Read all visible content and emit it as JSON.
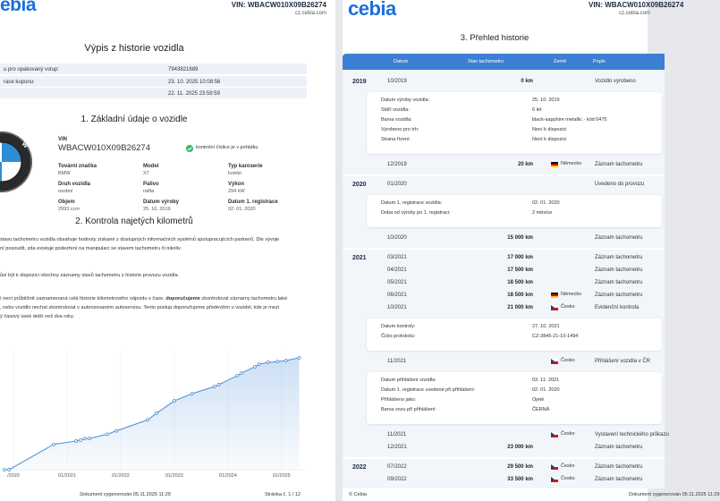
{
  "left_page": {
    "header": {
      "logo": "ebia",
      "vin": "VIN: WBACW010X09B26274",
      "web": "cz.cebia.com"
    },
    "title": "Výpis z historie vozidla",
    "coupon_rows": [
      {
        "label": "u pro opakovaný vstup:",
        "value": "7943821889"
      },
      {
        "label": "race kuponu:",
        "value": "23. 10. 2025 10:08:56"
      },
      {
        "value": "22. 11. 2025 23:59:59"
      }
    ],
    "section1": {
      "heading": "1. Základní údaje o vozidle",
      "vin_label": "VIN",
      "vin": "WBACW010X09B26274",
      "vin_check": "kontrolní číslice je v pořádku",
      "fields": [
        {
          "label": "Tovární značka",
          "value": "BMW"
        },
        {
          "label": "Model",
          "value": "X7"
        },
        {
          "label": "Typ karoserie",
          "value": "kombi"
        },
        {
          "label": "Druh vozidla",
          "value": "osobní"
        },
        {
          "label": "Palivo",
          "value": "nafta"
        },
        {
          "label": "Výkon",
          "value": "294 kW"
        },
        {
          "label": "Objem",
          "value": "2993 ccm"
        },
        {
          "label": "Datum výroby",
          "value": "25. 10. 2019"
        },
        {
          "label": "Datum 1. registrace",
          "value": "02. 01. 2020"
        }
      ]
    },
    "section2": {
      "heading": "2. Kontrola najetých kilometrů",
      "paragraphs": [
        [
          {
            "text": "stavu tachometru vozidla obsahuje hodnoty získané z dostupných informačních systémů spolupracujících partnerů. Dle vývoje"
          }
        ],
        [
          {
            "text": "ní posoudit, zda existuje podezření na manipulaci se stavem tachometru či nikoliv."
          }
        ],
        [
          {
            "text": "ůsí být k dispozici všechny záznamy stavů tachometru z historie provozu vozidla."
          }
        ],
        [
          {
            "text": "í není průběžně zaznamenaná celá historie kilometrového nájezdu v čase, "
          },
          {
            "text": "doporučujeme",
            "bold": true
          },
          {
            "text": " zkontrolovat záznamy tachometru také"
          }
        ],
        [
          {
            "text": ", nebo vozidlo nechat zkontrolovat v autorizovaném autoservisu. Tento postup doporučujeme především u vozidel, kde je mezi"
          }
        ],
        [
          {
            "text": "ý časový úsek delší než dva roky."
          }
        ]
      ],
      "chart": {
        "type": "line",
        "color": "#4a8fd8",
        "x": [
          2019.83,
          2019.92,
          2020.75,
          2021.17,
          2021.25,
          2021.33,
          2021.42,
          2021.75,
          2021.92,
          2022.5,
          2022.67,
          2023.0,
          2023.33,
          2023.75,
          2023.83,
          2024.17,
          2024.25,
          2024.5,
          2024.58,
          2024.75,
          2024.92,
          2025.08,
          2025.33
        ],
        "values": [
          0,
          20,
          15000,
          17000,
          17500,
          18500,
          18500,
          21000,
          23000,
          29500,
          33500,
          40800,
          45000,
          49300,
          50400,
          55700,
          57200,
          61000,
          62500,
          63600,
          64100,
          64700,
          66300
        ],
        "xlim": [
          2019.75,
          2025.42
        ],
        "ylim": [
          0,
          70000
        ],
        "xticks": [
          {
            "value": 2020,
            "label": "/2020"
          },
          {
            "value": 2021,
            "label": "01/2021"
          },
          {
            "value": 2022,
            "label": "01/2022"
          },
          {
            "value": 2023,
            "label": "01/2023"
          },
          {
            "value": 2024,
            "label": "01/2024"
          },
          {
            "value": 2025,
            "label": "01/2025"
          }
        ],
        "grid": true
      }
    },
    "footer": {
      "generated": "Dokument vygenerován 05.11.2025 11:29",
      "page": "Stránka č. 1 / 12"
    }
  },
  "right_page": {
    "header": {
      "logo": "cebia",
      "vin": "VIN: WBACW010X09B26274",
      "web": "cz.cebia.com"
    },
    "title": "3. Přehled historie",
    "columns": [
      "Datum",
      "Stav tachometru",
      "Země",
      "Popis"
    ],
    "groups": [
      {
        "year": "2019",
        "entries": [
          {
            "date": "10/2019",
            "km": "0 km",
            "desc": "Vozidlo vyrobeno"
          },
          {
            "details": [
              [
                "Datum výroby vozidla:",
                "25. 10. 2019"
              ],
              [
                "Stáří vozidla:",
                "6 let"
              ],
              [
                "Barva vozidla:",
                "black-sapphire metallic - kód 0475"
              ],
              [
                "Vyrobeno pro trh:",
                "Není k dispozici"
              ],
              [
                "Strana řízení:",
                "Není k dispozici"
              ]
            ]
          },
          {
            "date": "12/2019",
            "km": "20 km",
            "country": "Německo",
            "flag": "de",
            "desc": "Záznam tachometru"
          }
        ]
      },
      {
        "year": "2020",
        "entries": [
          {
            "date": "01/2020",
            "desc": "Uvedeno do provozu"
          },
          {
            "details": [
              [
                "Datum 1. registrace vozidla:",
                "02. 01. 2020"
              ],
              [
                "Doba od výroby po 1. registraci:",
                "2 měsíce"
              ]
            ]
          },
          {
            "date": "10/2020",
            "km": "15 000 km",
            "desc": "Záznam tachometru"
          }
        ]
      },
      {
        "year": "2021",
        "entries": [
          {
            "date": "03/2021",
            "km": "17 000 km",
            "desc": "Záznam tachometru"
          },
          {
            "date": "04/2021",
            "km": "17 500 km",
            "desc": "Záznam tachometru"
          },
          {
            "date": "05/2021",
            "km": "18 500 km",
            "desc": "Záznam tachometru"
          },
          {
            "date": "06/2021",
            "km": "18 500 km",
            "country": "Německo",
            "flag": "de",
            "desc": "Záznam tachometru"
          },
          {
            "date": "10/2021",
            "km": "21 000 km",
            "country": "Česko",
            "flag": "cz",
            "desc": "Evidenční kontrola"
          },
          {
            "details": [
              [
                "Datum kontroly:",
                "27. 10. 2021"
              ],
              [
                "Číslo protokolu:",
                "CZ-3846-21-10-1494"
              ]
            ]
          },
          {
            "date": "11/2021",
            "country": "Česko",
            "flag": "cz",
            "desc": "Přihlášení vozidla v ČR"
          },
          {
            "details": [
              [
                "Datum přihlášení vozidla:",
                "03. 11. 2021"
              ],
              [
                "Datum 1. registrace uvedené při přihlášení:",
                "02. 01. 2020"
              ],
              [
                "Přihlášeno jako:",
                "Ojeté"
              ],
              [
                "Barva vozu při přihlášení:",
                "ČERNÁ"
              ]
            ]
          },
          {
            "date": "11/2021",
            "country": "Česko",
            "flag": "cz",
            "desc": "Vystavení technického průkazu"
          },
          {
            "date": "12/2021",
            "km": "23 000 km",
            "desc": "Záznam tachometru"
          }
        ]
      },
      {
        "year": "2022",
        "entries": [
          {
            "date": "07/2022",
            "km": "29 500 km",
            "country": "Česko",
            "flag": "cz",
            "desc": "Záznam tachometru"
          },
          {
            "date": "09/2022",
            "km": "33 500 km",
            "country": "Česko",
            "flag": "cz",
            "desc": "Záznam tachometru"
          }
        ]
      }
    ],
    "footer": {
      "copyright": "© Cebia",
      "generated": "Dokument vygenerován 05.11.2025 11:29"
    }
  }
}
